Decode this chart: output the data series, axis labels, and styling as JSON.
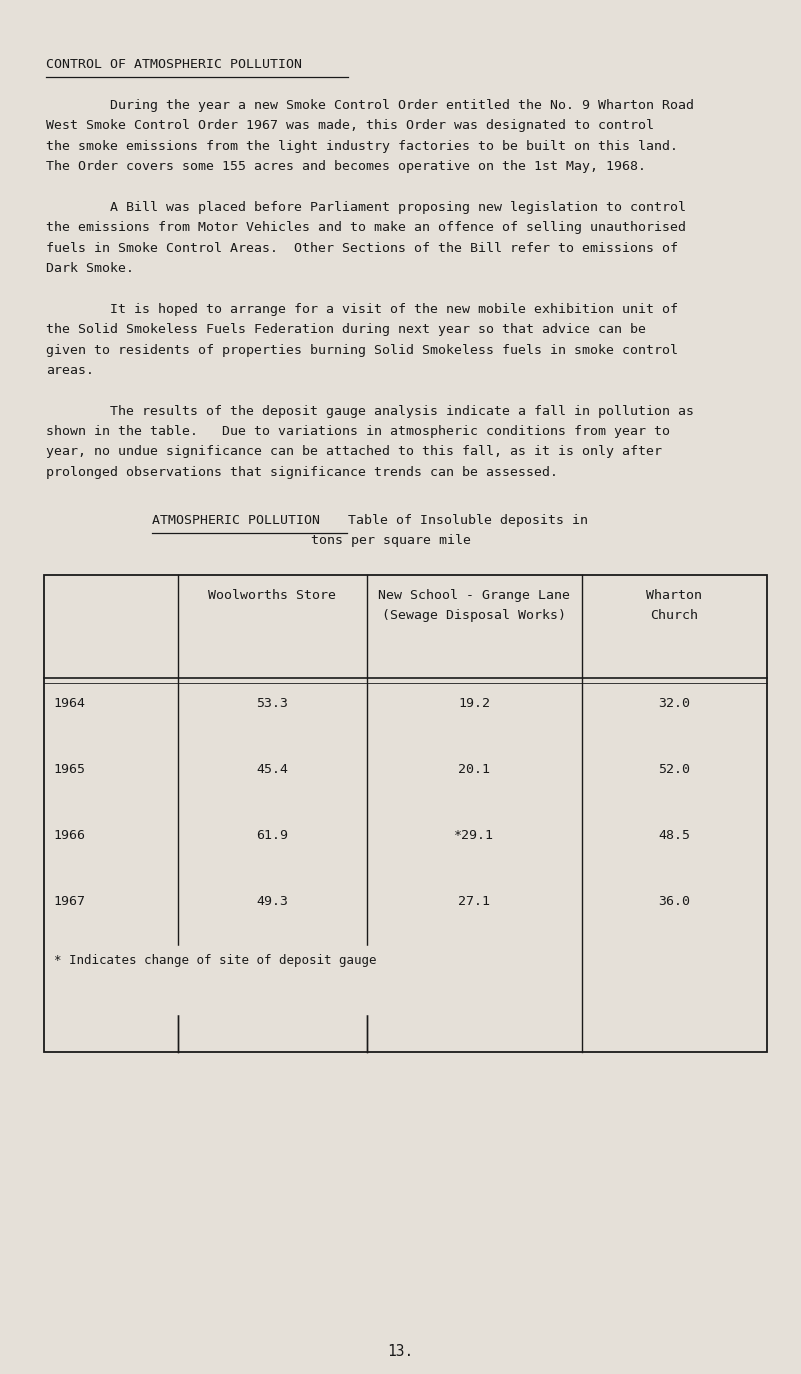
{
  "bg_color": "#e5e0d8",
  "text_color": "#1a1a1a",
  "page_number": "13.",
  "heading": "CONTROL OF ATMOSPHERIC POLLUTION",
  "paragraphs": [
    "        During the year a new Smoke Control Order entitled the No. 9 Wharton Road\nWest Smoke Control Order 1967 was made, this Order was designated to control\nthe smoke emissions from the light industry factories to be built on this land.\nThe Order covers some 155 acres and becomes operative on the 1st May, 1968.",
    "        A Bill was placed before Parliament proposing new legislation to control\nthe emissions from Motor Vehicles and to make an offence of selling unauthorised\nfuels in Smoke Control Areas.  Other Sections of the Bill refer to emissions of\nDark Smoke.",
    "        It is hoped to arrange for a visit of the new mobile exhibition unit of\nthe Solid Smokeless Fuels Federation during next year so that advice can be\ngiven to residents of properties burning Solid Smokeless fuels in smoke control\nareas.",
    "        The results of the deposit gauge analysis indicate a fall in pollution as\nshown in the table.   Due to variations in atmospheric conditions from year to\nyear, no undue significance can be attached to this fall, as it is only after\nprolonged observations that significance trends can be assessed."
  ],
  "table_heading_1": "ATMOSPHERIC POLLUTION",
  "table_heading_2": "Table of Insoluble deposits in",
  "table_heading_3": "tons per square mile",
  "col_headers": [
    "",
    "Woolworths Store",
    "New School - Grange Lane\n(Sewage Disposal Works)",
    "Wharton\nChurch"
  ],
  "rows": [
    [
      "1964",
      "53.3",
      "19.2",
      "32.0"
    ],
    [
      "1965",
      "45.4",
      "20.1",
      "52.0"
    ],
    [
      "1966",
      "61.9",
      "*29.1",
      "48.5"
    ],
    [
      "1967",
      "49.3",
      "27.1",
      "36.0"
    ]
  ],
  "footnote": "* Indicates change of site of deposit gauge",
  "font_size": 9.5
}
